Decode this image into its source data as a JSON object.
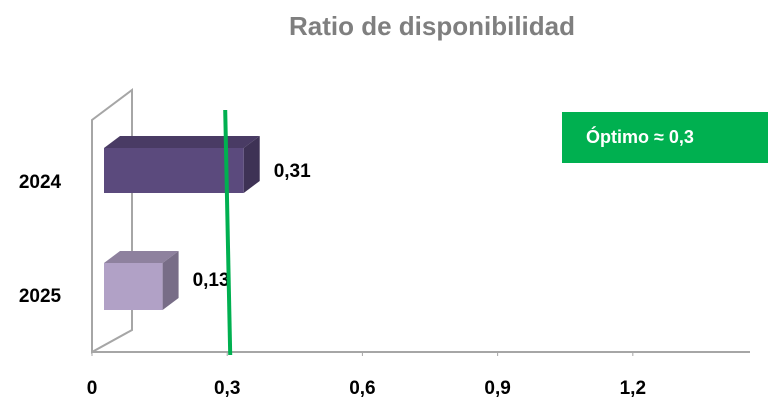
{
  "chart_data": {
    "type": "bar3d_horizontal",
    "title": "Ratio de disponibilidad",
    "categories": [
      "2024",
      "2025"
    ],
    "values": [
      0.31,
      0.13
    ],
    "value_labels": [
      "0,31",
      "0,13"
    ],
    "colors": [
      "#5b4a7d",
      "#b1a1c6"
    ],
    "xlim": [
      0,
      1.46
    ],
    "xticks": [
      0,
      {
        "value": 0.3,
        "label": "0,3"
      },
      {
        "value": 0.6,
        "label": "0,6"
      },
      {
        "value": 0.9,
        "label": "0,9"
      },
      {
        "value": 1.2,
        "label": "1,2"
      }
    ],
    "reference_line": {
      "value": 0.3,
      "label": "Óptimo ≈ 0,3",
      "color": "#00b050"
    }
  }
}
